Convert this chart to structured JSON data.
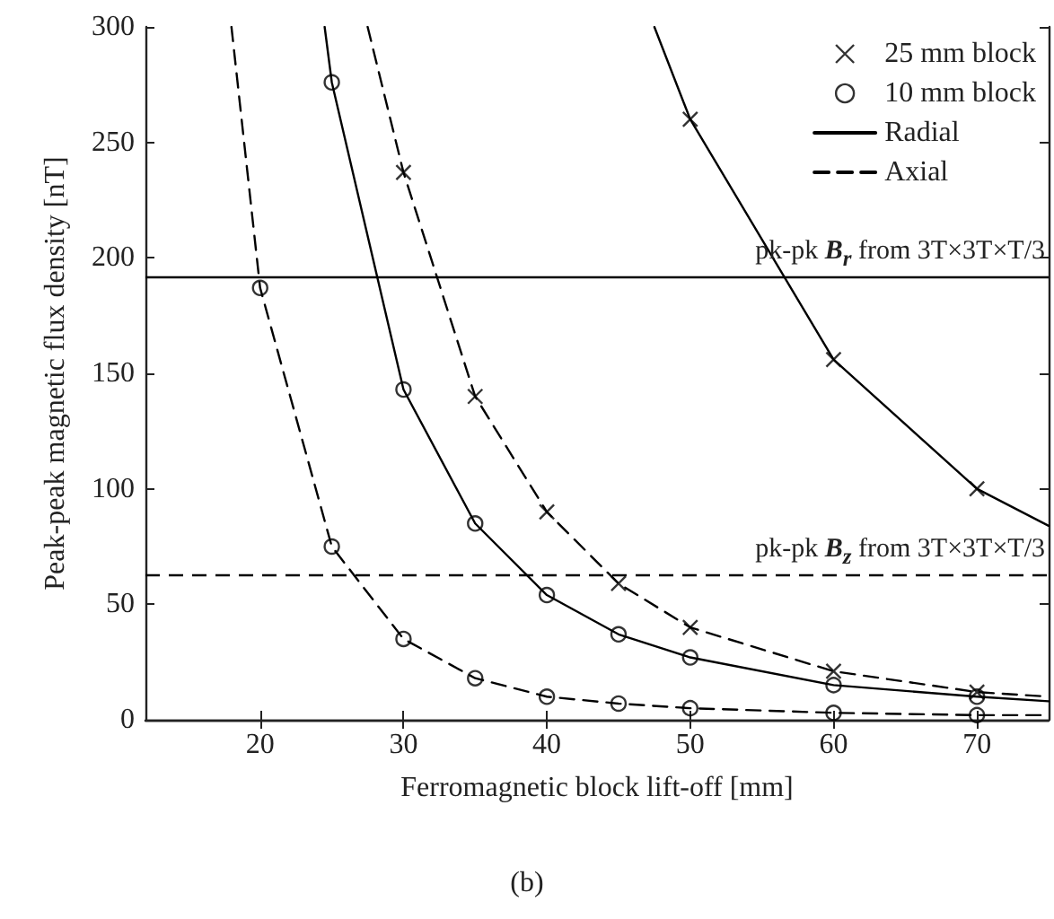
{
  "chart_data": {
    "type": "line",
    "xlabel": "Ferromagnetic block lift-off [mm]",
    "ylabel": "Peak-peak magnetic flux density [nT]",
    "annotations": [
      "(b)"
    ],
    "xlim": [
      12,
      75
    ],
    "xticks": [
      20,
      30,
      40,
      50,
      60,
      70
    ],
    "ylim": [
      0,
      300
    ],
    "yticks": [
      0,
      50,
      100,
      150,
      200,
      250,
      300
    ],
    "legend": "top right",
    "series": [
      {
        "name": "25 mm block",
        "type": "scatter",
        "marker": "cross",
        "color": "#000000",
        "x": [
          30,
          35,
          40,
          45,
          50,
          60,
          70,
          50,
          60,
          70
        ],
        "values": [
          237,
          140,
          90,
          59,
          40,
          21,
          12,
          260,
          156,
          100
        ]
      },
      {
        "name": "10 mm block",
        "type": "scatter",
        "marker": "circle",
        "color": "#000000",
        "x": [
          25,
          30,
          35,
          40,
          45,
          50,
          60,
          70,
          20,
          25,
          30,
          35,
          40,
          45,
          50,
          60,
          70
        ],
        "values": [
          276,
          143,
          85,
          54,
          37,
          27,
          15,
          10,
          187,
          75,
          35,
          18,
          10,
          7,
          5,
          3,
          2
        ]
      },
      {
        "name": "Radial",
        "type": "line",
        "marker": "none",
        "line_style": "solid",
        "color": "#000000",
        "x": [
          47.5,
          50,
          60,
          70,
          75
        ],
        "values": [
          300,
          260,
          156,
          100,
          84
        ]
      },
      {
        "type": "line",
        "marker": "none",
        "line_style": "solid",
        "color": "#000000",
        "x": [
          24.5,
          25,
          30,
          35,
          40,
          45,
          50,
          60,
          70,
          75
        ],
        "values": [
          300,
          276,
          143,
          85,
          54,
          37,
          27,
          15,
          10,
          8
        ]
      },
      {
        "name": "Axial",
        "type": "line",
        "marker": "none",
        "line_style": "dashed",
        "color": "#000000",
        "x": [
          27.5,
          30,
          35,
          40,
          45,
          50,
          60,
          70,
          75
        ],
        "values": [
          300,
          237,
          140,
          90,
          59,
          40,
          21,
          12,
          10
        ]
      },
      {
        "type": "line",
        "marker": "none",
        "line_style": "dashed",
        "color": "#000000",
        "x": [
          18,
          20,
          25,
          30,
          35,
          40,
          45,
          50,
          60,
          70,
          75
        ],
        "values": [
          300,
          187,
          75,
          35,
          18,
          10,
          7,
          5,
          3,
          2,
          2
        ]
      }
    ],
    "ref_lines": [
      {
        "axis": "y",
        "value": 192,
        "label": "pk-pk B$_{r}$ from 3T×3T×T/3",
        "line_style": "solid",
        "color": "#000000"
      },
      {
        "axis": "y",
        "value": 63,
        "label": "pk-pk B$_{z}$ from 3T×3T×T/3",
        "line_style": "dashed",
        "color": "#000000"
      }
    ]
  }
}
